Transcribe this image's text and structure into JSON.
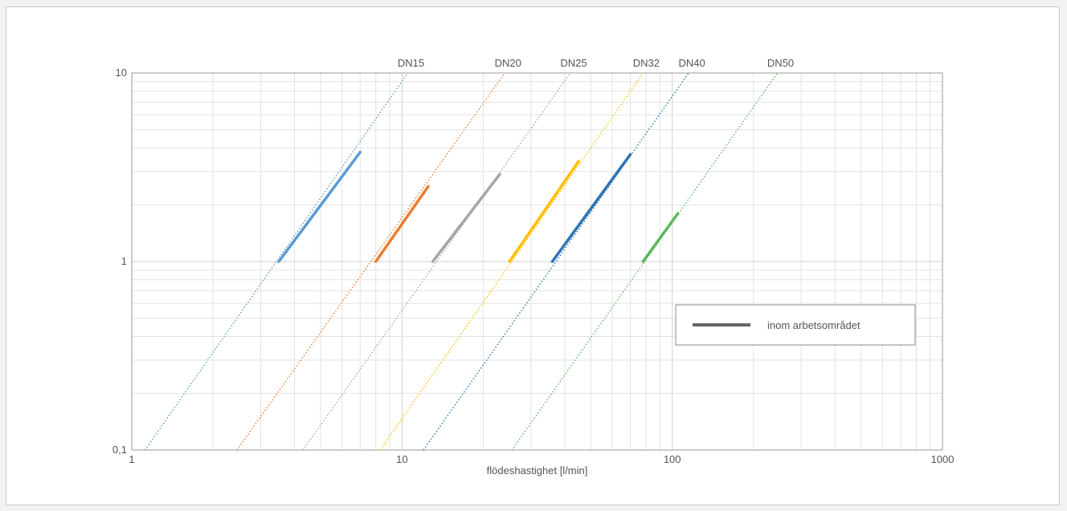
{
  "chart_data": {
    "type": "line",
    "xlabel": "flödeshastighet [l/min]",
    "ylabel": "",
    "xscale": "log",
    "yscale": "log",
    "xlim": [
      1,
      1000
    ],
    "ylim": [
      0.1,
      10
    ],
    "xticks": [
      "1",
      "10",
      "100",
      "1000"
    ],
    "yticks": [
      "0,1",
      "1",
      "10"
    ],
    "grid": true,
    "legend": {
      "position": "lower-right",
      "entries": [
        "inom arbetsområdet"
      ],
      "color": "#666666"
    },
    "series": [
      {
        "name": "DN15",
        "color": "#5b9bd5",
        "line": [
          [
            1.12,
            0.1
          ],
          [
            10.5,
            10
          ]
        ],
        "range": [
          [
            3.5,
            1.0
          ],
          [
            7.0,
            3.8
          ]
        ]
      },
      {
        "name": "DN20",
        "color": "#ed7d31",
        "line": [
          [
            2.45,
            0.1
          ],
          [
            24.0,
            10
          ]
        ],
        "range": [
          [
            8.0,
            1.0
          ],
          [
            12.5,
            2.5
          ]
        ]
      },
      {
        "name": "DN25",
        "color": "#a5a5a5",
        "line": [
          [
            4.3,
            0.1
          ],
          [
            42.0,
            10
          ]
        ],
        "range": [
          [
            13.0,
            1.0
          ],
          [
            23.0,
            2.9
          ]
        ]
      },
      {
        "name": "DN32",
        "color": "#ffc000",
        "line": [
          [
            8.3,
            0.1
          ],
          [
            78.0,
            10
          ]
        ],
        "range": [
          [
            25.0,
            1.0
          ],
          [
            45.0,
            3.4
          ]
        ]
      },
      {
        "name": "DN40",
        "color": "#2e75b6",
        "line": [
          [
            12.0,
            0.1
          ],
          [
            115.0,
            10
          ]
        ],
        "range": [
          [
            36.0,
            1.0
          ],
          [
            70.0,
            3.7
          ]
        ]
      },
      {
        "name": "DN50",
        "color": "#5cb85c",
        "line": [
          [
            25.5,
            0.1
          ],
          [
            245.0,
            10
          ]
        ],
        "range": [
          [
            78.0,
            1.0
          ],
          [
            105.0,
            1.8
          ]
        ]
      }
    ]
  }
}
